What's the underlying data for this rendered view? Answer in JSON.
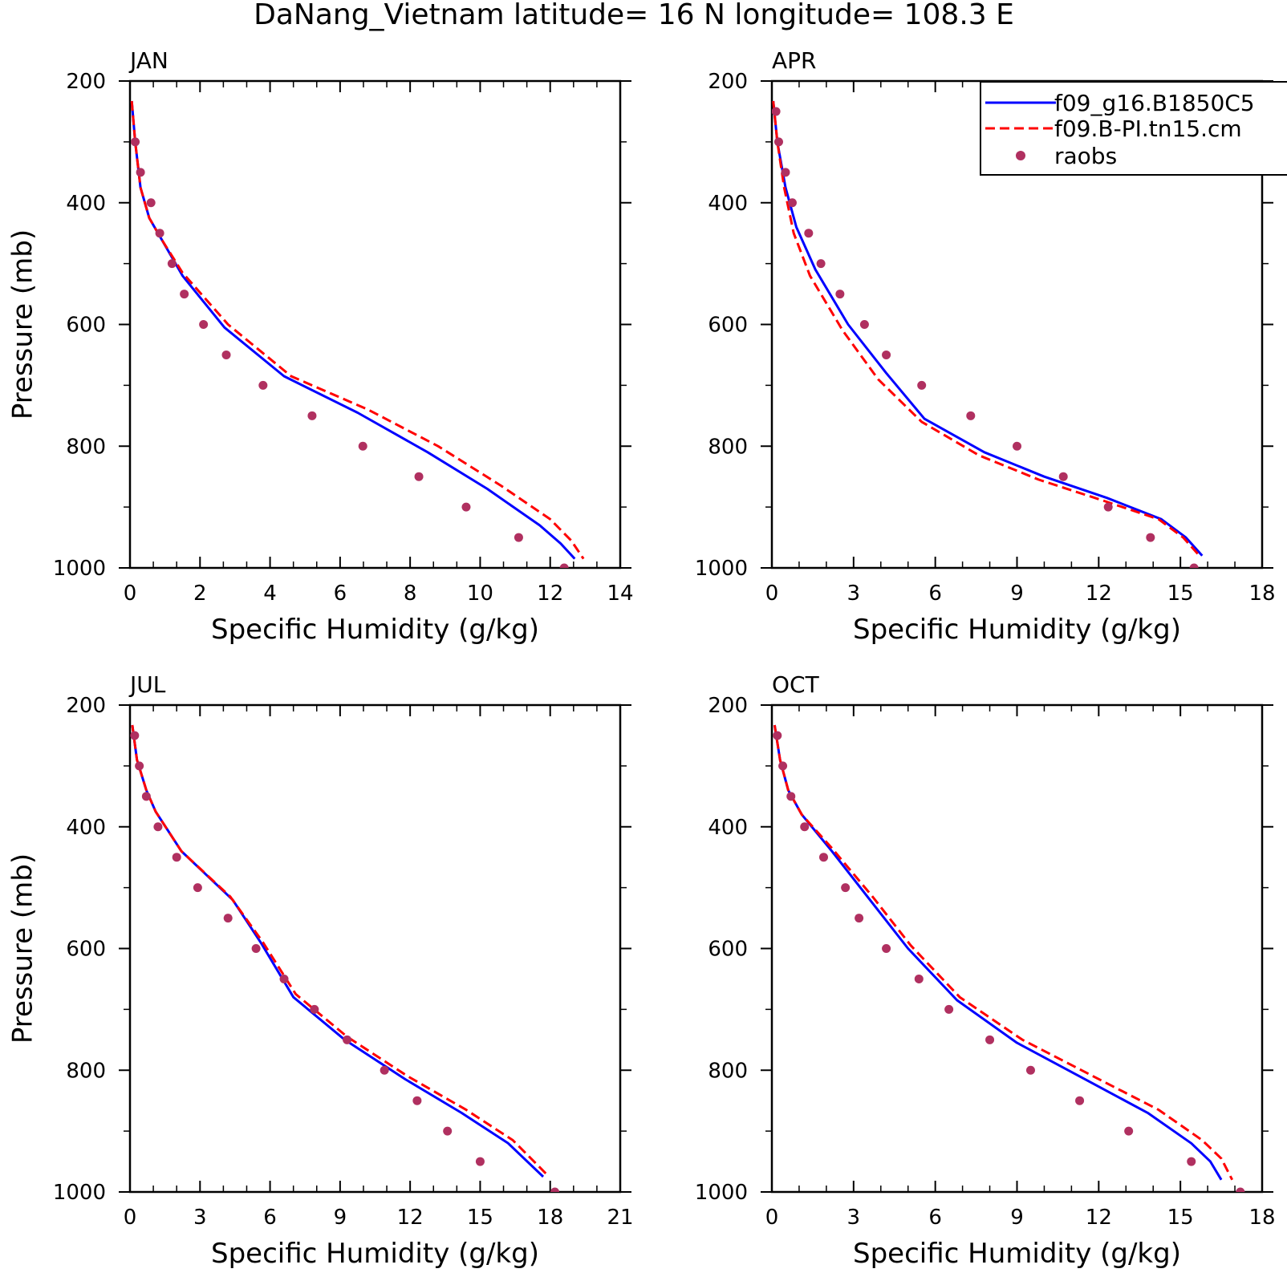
{
  "figure": {
    "title": "DaNang_Vietnam   latitude=  16 N longitude=  108.3 E"
  },
  "legend": {
    "entries": [
      {
        "label": "f09_g16.B1850C5",
        "style": "solid",
        "color": "#0000ff"
      },
      {
        "label": "f09.B-PI.tn15.cm",
        "style": "dashed",
        "color": "#ff0000"
      },
      {
        "label": "raobs",
        "style": "marker",
        "color": "#b03060"
      }
    ]
  },
  "chart_data": [
    {
      "type": "line",
      "panel": "JAN",
      "xlabel": "Specific Humidity (g/kg)",
      "ylabel": "Pressure (mb)",
      "xlim": [
        0,
        14
      ],
      "ylim": [
        200,
        1000
      ],
      "y_inverted": true,
      "xticks": [
        0,
        2,
        4,
        6,
        8,
        10,
        12,
        14
      ],
      "yticks": [
        200,
        400,
        600,
        800,
        1000
      ],
      "series": [
        {
          "name": "f09_g16.B1850C5",
          "style": "solid",
          "x": [
            0.05,
            0.15,
            0.3,
            0.55,
            0.9,
            1.5,
            2.7,
            4.4,
            6.5,
            8.5,
            10.2,
            11.7,
            12.3,
            12.7
          ],
          "y": [
            233,
            300,
            375,
            425,
            460,
            520,
            605,
            685,
            745,
            810,
            870,
            930,
            960,
            985
          ]
        },
        {
          "name": "f09.B-PI.tn15.cm",
          "style": "dashed",
          "x": [
            0.05,
            0.15,
            0.3,
            0.55,
            0.9,
            1.5,
            2.8,
            4.6,
            6.8,
            8.8,
            10.6,
            12.0,
            12.6,
            12.95
          ],
          "y": [
            233,
            300,
            375,
            425,
            460,
            515,
            600,
            685,
            740,
            800,
            865,
            920,
            955,
            985
          ]
        },
        {
          "name": "raobs",
          "style": "marker",
          "x": [
            0.15,
            0.3,
            0.6,
            0.85,
            1.2,
            1.55,
            2.1,
            2.75,
            3.8,
            5.2,
            6.65,
            8.25,
            9.6,
            11.1,
            12.4
          ],
          "y": [
            300,
            350,
            400,
            450,
            500,
            550,
            600,
            650,
            700,
            750,
            800,
            850,
            900,
            950,
            1000
          ]
        }
      ]
    },
    {
      "type": "line",
      "panel": "APR",
      "xlabel": "Specific Humidity (g/kg)",
      "ylabel": "",
      "xlim": [
        0,
        18
      ],
      "ylim": [
        200,
        1000
      ],
      "y_inverted": true,
      "xticks": [
        0,
        3,
        6,
        9,
        12,
        15,
        18
      ],
      "yticks": [
        200,
        400,
        600,
        800,
        1000
      ],
      "series": [
        {
          "name": "f09_g16.B1850C5",
          "style": "solid",
          "x": [
            0.05,
            0.2,
            0.5,
            0.9,
            1.6,
            2.8,
            4.2,
            5.6,
            7.8,
            10.0,
            12.3,
            14.3,
            15.2,
            15.8
          ],
          "y": [
            233,
            300,
            375,
            440,
            510,
            600,
            680,
            755,
            810,
            850,
            885,
            920,
            950,
            980
          ]
        },
        {
          "name": "f09.B-PI.tn15.cm",
          "style": "dashed",
          "x": [
            0.05,
            0.2,
            0.45,
            0.8,
            1.4,
            2.6,
            3.9,
            5.5,
            7.6,
            9.8,
            12.2,
            14.2,
            15.1,
            15.7
          ],
          "y": [
            233,
            300,
            375,
            450,
            520,
            610,
            690,
            760,
            815,
            855,
            890,
            920,
            950,
            980
          ]
        },
        {
          "name": "raobs",
          "style": "marker",
          "x": [
            0.15,
            0.25,
            0.5,
            0.75,
            1.35,
            1.8,
            2.5,
            3.4,
            4.2,
            5.5,
            7.3,
            9.0,
            10.7,
            12.35,
            13.9,
            15.5
          ],
          "y": [
            250,
            300,
            350,
            400,
            450,
            500,
            550,
            600,
            650,
            700,
            750,
            800,
            850,
            900,
            950,
            1000
          ]
        }
      ]
    },
    {
      "type": "line",
      "panel": "JUL",
      "xlabel": "Specific Humidity (g/kg)",
      "ylabel": "Pressure (mb)",
      "xlim": [
        0,
        21
      ],
      "ylim": [
        200,
        1000
      ],
      "y_inverted": true,
      "xticks": [
        0,
        3,
        6,
        9,
        12,
        15,
        18,
        21
      ],
      "yticks": [
        200,
        400,
        600,
        800,
        1000
      ],
      "series": [
        {
          "name": "f09_g16.B1850C5",
          "style": "solid",
          "x": [
            0.1,
            0.3,
            0.7,
            1.1,
            2.2,
            4.4,
            5.6,
            7.0,
            9.2,
            11.8,
            14.2,
            16.2,
            17.7
          ],
          "y": [
            233,
            290,
            340,
            375,
            440,
            520,
            590,
            680,
            750,
            815,
            870,
            920,
            975
          ]
        },
        {
          "name": "f09.B-PI.tn15.cm",
          "style": "dashed",
          "x": [
            0.1,
            0.3,
            0.7,
            1.1,
            2.2,
            4.3,
            5.7,
            7.1,
            9.3,
            11.9,
            14.4,
            16.4,
            17.95
          ],
          "y": [
            233,
            290,
            340,
            375,
            440,
            515,
            590,
            675,
            745,
            810,
            865,
            915,
            975
          ]
        },
        {
          "name": "raobs",
          "style": "marker",
          "x": [
            0.2,
            0.4,
            0.7,
            1.2,
            2.0,
            2.9,
            4.2,
            5.4,
            6.6,
            7.9,
            9.3,
            10.9,
            12.3,
            13.6,
            15.0,
            18.2
          ],
          "y": [
            250,
            300,
            350,
            400,
            450,
            500,
            550,
            600,
            650,
            700,
            750,
            800,
            850,
            900,
            950,
            1000
          ]
        }
      ]
    },
    {
      "type": "line",
      "panel": "OCT",
      "xlabel": "Specific Humidity (g/kg)",
      "ylabel": "",
      "xlim": [
        0,
        18
      ],
      "ylim": [
        200,
        1000
      ],
      "y_inverted": true,
      "xticks": [
        0,
        3,
        6,
        9,
        12,
        15,
        18
      ],
      "yticks": [
        200,
        400,
        600,
        800,
        1000
      ],
      "series": [
        {
          "name": "f09_g16.B1850C5",
          "style": "solid",
          "x": [
            0.1,
            0.3,
            0.6,
            1.1,
            2.2,
            3.6,
            5.0,
            6.8,
            9.0,
            11.5,
            13.8,
            15.4,
            16.1,
            16.5
          ],
          "y": [
            233,
            290,
            340,
            380,
            440,
            520,
            600,
            685,
            755,
            815,
            870,
            920,
            950,
            980
          ]
        },
        {
          "name": "f09.B-PI.tn15.cm",
          "style": "dashed",
          "x": [
            0.1,
            0.3,
            0.6,
            1.1,
            2.2,
            3.7,
            5.1,
            6.9,
            9.2,
            11.8,
            14.2,
            15.8,
            16.5,
            16.9
          ],
          "y": [
            233,
            290,
            340,
            380,
            435,
            515,
            595,
            680,
            750,
            810,
            865,
            915,
            945,
            980
          ]
        },
        {
          "name": "raobs",
          "style": "marker",
          "x": [
            0.2,
            0.4,
            0.7,
            1.2,
            1.9,
            2.7,
            3.2,
            4.2,
            5.4,
            6.5,
            8.0,
            9.5,
            11.3,
            13.1,
            15.4,
            17.2
          ],
          "y": [
            250,
            300,
            350,
            400,
            450,
            500,
            550,
            600,
            650,
            700,
            750,
            800,
            850,
            900,
            950,
            1000
          ]
        }
      ]
    }
  ]
}
